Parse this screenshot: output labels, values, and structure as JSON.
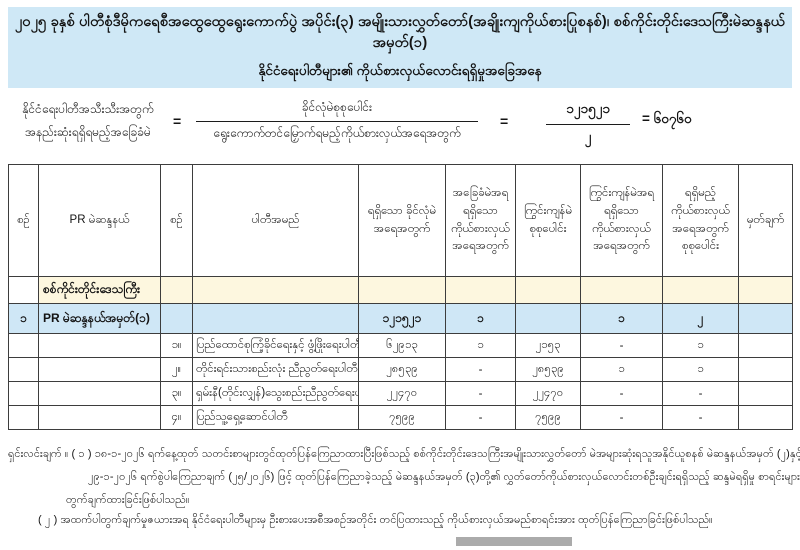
{
  "title": {
    "line1": "၂၀၂၅ ခုနှစ် ပါတီစုံဒီမိုကရေစီအထွေထွေရွေးကောက်ပွဲ အပိုင်း(၃) အမျိုးသားလွှတ်တော်(အချိုးကျကိုယ်စားပြုစနစ်)၊ စစ်ကိုင်းတိုင်းဒေသကြီးမဲဆန္ဒနယ်အမှတ်(၁)",
    "line2": "နိုင်ငံရေးပါတီများ၏ ကိုယ်စားလှယ်လောင်းရရှိမှုအခြေအနေ"
  },
  "formula": {
    "label_line1": "နိုင်ငံရေးပါတီအသီးသီးအတွက်",
    "label_line2": "အနည်းဆုံးရရှိရမည့်အခြေခံမဲ",
    "equals": "=",
    "numerator": "ခိုင်လုံမဲစုစုပေါင်း",
    "denominator": "ရွေးကောက်တင်မြှောက်ရမည့်ကိုယ်စားလှယ်အရေအတွက်",
    "value_numerator": "၁၂၁၅၂၁",
    "value_denominator": "၂",
    "result": "= ၆၀၇၆၀"
  },
  "table": {
    "headers": [
      "စဉ်",
      "PR မဲဆန္ဒနယ်",
      "စဉ်",
      "ပါတီအမည်",
      "ရရှိသော ခိုင်လုံမဲ အရေအတွက်",
      "အခြေခံမဲအရ ရရှိသော ကိုယ်စားလှယ် အရေအတွက်",
      "ကြွင်းကျန်မဲ စုစုပေါင်း",
      "ကြွင်းကျန်မဲအရ ရရှိသော ကိုယ်စားလှယ် အရေအတွက်",
      "ရရှိမည့် ကိုယ်စားလှယ် အရေအတွက် စုစုပေါင်း",
      "မှတ်ချက်"
    ],
    "region_row": {
      "label": "စစ်ကိုင်းတိုင်းဒေသကြီး"
    },
    "summary_row": {
      "no": "၁",
      "constituency": "PR မဲဆန္ဒနယ်အမှတ်(၁)",
      "valid_votes": "၁၂၁၅၂၁",
      "base_seats": "၁",
      "remaining_votes": "",
      "remaining_seats": "၁",
      "total_seats": "၂",
      "remark": ""
    },
    "party_rows": [
      {
        "no": "၁။",
        "party": "ပြည်ထောင်စုကြံ့ခိုင်ရေးနှင့် ဖွံ့ဖြိုးရေးပါတီ",
        "valid_votes": "၆၂၉၁၃",
        "base_seats": "၁",
        "remaining_votes": "၂၁၅၃",
        "remaining_seats": "-",
        "total_seats": "၁",
        "remark": ""
      },
      {
        "no": "၂။",
        "party": "တိုင်းရင်းသားစည်းလုံး ညီညွတ်ရေးပါတီ",
        "valid_votes": "၂၈၅၃၉",
        "base_seats": "-",
        "remaining_votes": "၂၈၅၃၉",
        "remaining_seats": "၁",
        "total_seats": "၁",
        "remark": ""
      },
      {
        "no": "၃။",
        "party": "ရှမ်းနီ(တိုင်းလျှန်)သွေးစည်းညီညွတ်ရေးပါတီ",
        "valid_votes": "၂၂၄၇၀",
        "base_seats": "-",
        "remaining_votes": "၂၂၄၇၀",
        "remaining_seats": "-",
        "total_seats": "-",
        "remark": ""
      },
      {
        "no": "၄။",
        "party": "ပြည်သူ့ရှေ့ဆောင်ပါတီ",
        "valid_votes": "၇၅၉၉",
        "base_seats": "-",
        "remaining_votes": "၇၅၉၉",
        "remaining_seats": "-",
        "total_seats": "-",
        "remark": ""
      }
    ]
  },
  "notes": {
    "line1": "ရှင်းလင်းချက် ။  ( ၁ )  ၁၈-၁-၂၀၂၆ ရက်နေ့ထုတ် သတင်းစာများတွင်ထုတ်ပြန်ကြေညာထားပြီးဖြစ်သည့် စစ်ကိုင်းတိုင်းဒေသကြီးအမျိုးသားလွှတ်တော် မဲအများဆုံးရသူအနိုင်ယူစနစ် မဲဆန္ဒနယ်အမှတ် (၂)နှင့်",
    "line2": "၂၉-၁-၂၀၂၆ ရက်စွဲပါကြေညာချက် (၂၅/၂၀၂၆) ဖြင့် ထုတ်ပြန်ကြေညာခဲ့သည့် မဲဆန္ဒနယ်အမှတ် (၃)တို့၏ လွှတ်တော်ကိုယ်စားလှယ်လောင်းတစ်ဦးချင်းရရှိသည့် ဆန္ဒမဲရရှိမှု စာရင်းများကိုပေါင်း၍",
    "line3": "တွက်ချက်ထားခြင်းဖြစ်ပါသည်။",
    "line4": "( ၂ )  အထက်ပါတွက်ချက်မှုဇယားအရ နိုင်ငံရေးပါတီများမှ ဦးစားပေးအစီအစဉ်အတိုင်း တင်ပြထားသည့် ကိုယ်စားလှယ်အမည်စာရင်းအား ထုတ်ပြန်ကြေညာခြင်းဖြစ်ပါသည်။"
  },
  "colors": {
    "banner_bg": "#cfe8f6",
    "summary_row_bg": "#cfe7f6",
    "region_row_bg": "#fdf7df",
    "border": "#3d3d3d"
  }
}
